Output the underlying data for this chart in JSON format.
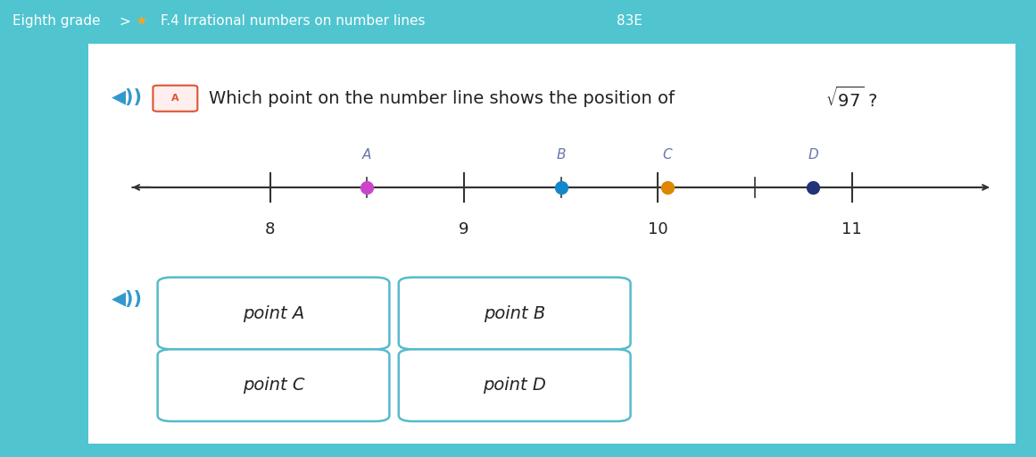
{
  "breadcrumb_parts": [
    "Eighth grade",
    ">",
    "★",
    "F.4 Irrational numbers on number lines",
    "83E"
  ],
  "question_text": "Which point on the number line shows the position of ",
  "sqrt_text": "$\\sqrt{97}$",
  "number_line": {
    "x_min": 7.3,
    "x_max": 11.7,
    "ticks": [
      8,
      9,
      10,
      11
    ],
    "tick_labels": [
      "8",
      "9",
      "10",
      "11"
    ],
    "half_ticks": [
      8.5,
      9.5,
      10.5
    ]
  },
  "points": [
    {
      "label": "A",
      "x": 8.5,
      "color": "#cc44cc"
    },
    {
      "label": "B",
      "x": 9.5,
      "color": "#1188cc"
    },
    {
      "label": "C",
      "x": 10.05,
      "color": "#dd8800"
    },
    {
      "label": "D",
      "x": 10.8,
      "color": "#223377"
    }
  ],
  "answer_buttons": [
    "point A",
    "point B",
    "point C",
    "point D"
  ],
  "top_bar_color": "#50c5d0",
  "card_color": "#ffffff",
  "card_bg": "#e8e8e8",
  "button_border_color": "#55bbcc",
  "button_text_color": "#222222",
  "header_text_color": "#222222",
  "star_color": "#f5a623",
  "speaker_color": "#3399cc",
  "figsize": [
    11.61,
    5.12
  ],
  "dpi": 100
}
